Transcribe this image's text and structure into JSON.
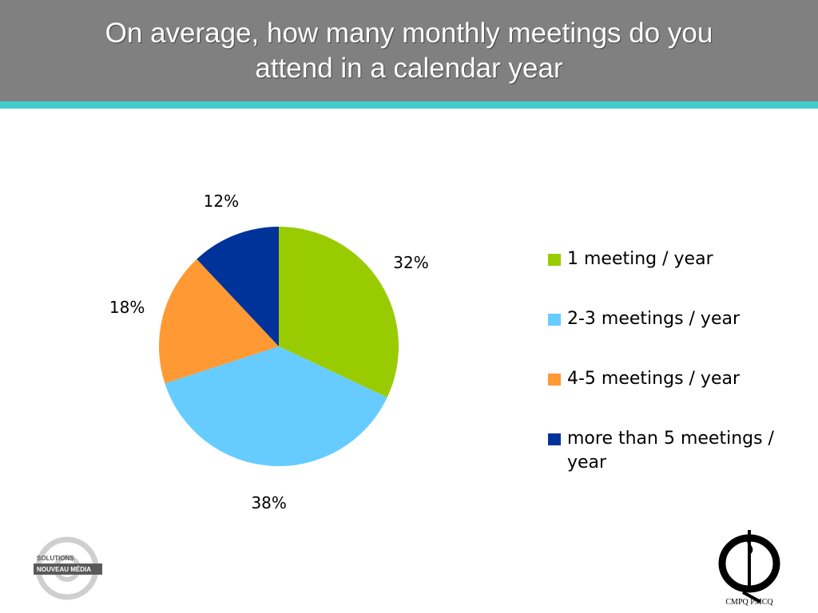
{
  "header": {
    "title_line1": "On average, how many monthly meetings do you",
    "title_line2": "attend in a calendar year",
    "background": "#808080",
    "rule_color": "#3fcccc"
  },
  "chart_data": {
    "type": "pie",
    "title": "On average, how many monthly meetings do you attend in a calendar year",
    "slices": [
      {
        "label": "1 meeting / year",
        "value": 32,
        "display": "32%",
        "color": "#99cc00"
      },
      {
        "label": "2-3 meetings / year",
        "value": 38,
        "display": "38%",
        "color": "#66ccff"
      },
      {
        "label": "4-5 meetings / year",
        "value": 18,
        "display": "18%",
        "color": "#ff9933"
      },
      {
        "label": "more than 5 meetings / year",
        "value": 12,
        "display": "12%",
        "color": "#003399"
      }
    ],
    "legend_position": "right"
  },
  "logos": {
    "left": {
      "line1": "SOLUTIONS",
      "line2": "NOUVEAU MÉDIA",
      "icon": "at-sign-logo"
    },
    "right": {
      "text": "CMPQ PMCQ",
      "icon": "cmpq-pmcq-logo"
    }
  }
}
